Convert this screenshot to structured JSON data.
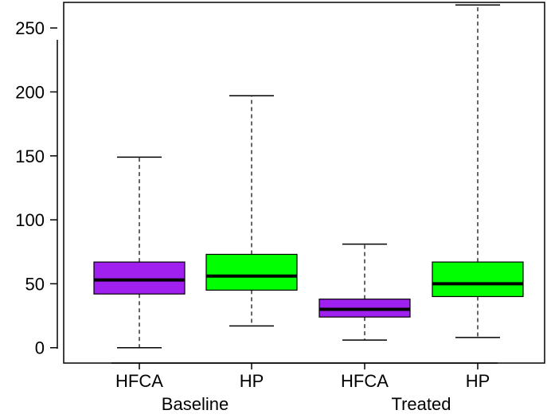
{
  "chart_data": {
    "type": "boxplot",
    "title": "",
    "xlabel": "",
    "ylabel": "",
    "ylim": [
      -12,
      270
    ],
    "yticks": [
      0,
      50,
      100,
      150,
      200,
      250
    ],
    "grid": false,
    "legend": "none",
    "groups": [
      {
        "label": "Baseline",
        "categories": [
          "HFCA",
          "HP"
        ]
      },
      {
        "label": "Treated",
        "categories": [
          "HFCA",
          "HP"
        ]
      }
    ],
    "boxes": [
      {
        "group": "Baseline",
        "category": "HFCA",
        "color": "#a020f0",
        "min": 0,
        "q1": 42,
        "median": 53,
        "q3": 67,
        "max": 149
      },
      {
        "group": "Baseline",
        "category": "HP",
        "color": "#00ff00",
        "min": 17,
        "q1": 45,
        "median": 56,
        "q3": 73,
        "max": 197
      },
      {
        "group": "Treated",
        "category": "HFCA",
        "color": "#a020f0",
        "min": 6,
        "q1": 24,
        "median": 30,
        "q3": 38,
        "max": 81
      },
      {
        "group": "Treated",
        "category": "HP",
        "color": "#00ff00",
        "min": 8,
        "q1": 40,
        "median": 50,
        "q3": 67,
        "max": 268
      }
    ]
  }
}
